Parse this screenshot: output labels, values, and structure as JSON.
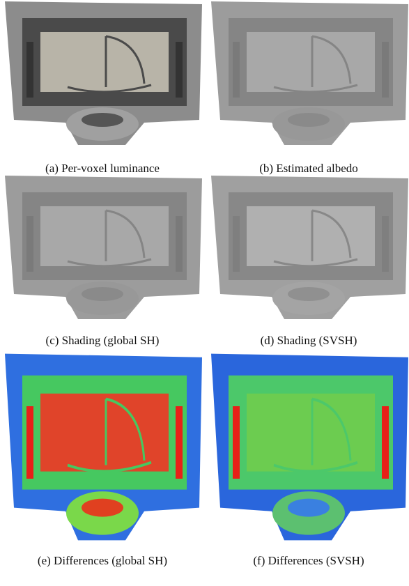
{
  "figure": {
    "panels": [
      {
        "caption": "(a) Per-voxel luminance"
      },
      {
        "caption": "(b) Estimated albedo"
      },
      {
        "caption": "(c) Shading (global SH)"
      },
      {
        "caption": "(d) Shading (SVSH)"
      },
      {
        "caption": "(e) Differences (global SH)"
      },
      {
        "caption": "(f) Differences (SVSH)"
      }
    ]
  }
}
